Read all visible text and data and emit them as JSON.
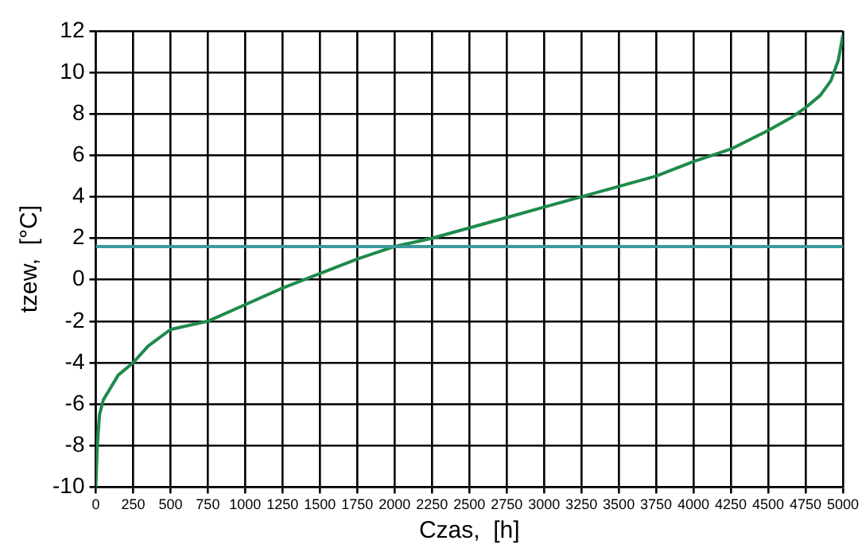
{
  "chart_data": {
    "type": "line",
    "xlabel": "Czas,  [h]",
    "ylabel": "tzew,  [°C]",
    "series": [
      {
        "color": "#1f8a4c",
        "x": [
          0,
          10,
          25,
          50,
          100,
          150,
          250,
          350,
          500,
          625,
          750,
          1000,
          1250,
          1500,
          1750,
          2000,
          2250,
          2500,
          2750,
          3000,
          3250,
          3500,
          3750,
          4000,
          4250,
          4500,
          4650,
          4750,
          4850,
          4920,
          4970,
          5000
        ],
        "values": [
          -10,
          -8,
          -6.5,
          -5.8,
          -5.2,
          -4.6,
          -4,
          -3.2,
          -2.4,
          -2.2,
          -2,
          -1.2,
          -0.4,
          0.3,
          1.0,
          1.6,
          2.0,
          2.5,
          3.0,
          3.5,
          4.0,
          4.5,
          5.0,
          5.7,
          6.3,
          7.2,
          7.8,
          8.3,
          8.9,
          9.6,
          10.6,
          11.8
        ]
      }
    ],
    "xlim": [
      0,
      5000
    ],
    "xticks": [
      0,
      250,
      500,
      750,
      1000,
      1250,
      1500,
      1750,
      2000,
      2250,
      2500,
      2750,
      3000,
      3250,
      3500,
      3750,
      4000,
      4250,
      4500,
      4750,
      5000
    ],
    "ylim": [
      -10,
      12
    ],
    "yticks": [
      -10,
      -8,
      -6,
      -4,
      -2,
      0,
      2,
      4,
      6,
      8,
      10,
      12
    ],
    "ref_lines": [
      {
        "axis": "y",
        "value": 1.6,
        "color": "#3a9a9a"
      }
    ],
    "grid": true,
    "legend": false,
    "marker": "none",
    "line_style": "solid"
  }
}
